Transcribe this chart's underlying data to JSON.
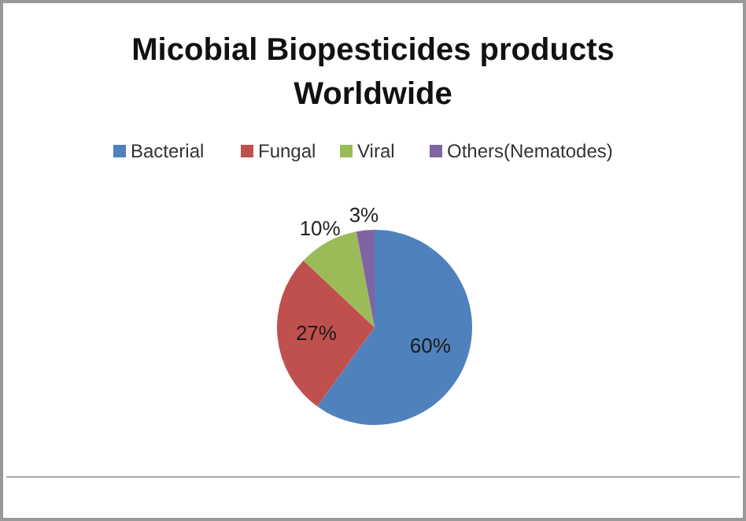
{
  "chart_data": {
    "type": "pie",
    "title": "Micobial Biopesticides products Worldwide",
    "categories": [
      "Bacterial",
      "Fungal",
      "Viral",
      "Others(Nematodes)"
    ],
    "values": [
      60,
      27,
      10,
      3
    ],
    "value_labels": [
      "60%",
      "27%",
      "10%",
      "3%"
    ],
    "colors": [
      "#4f81bd",
      "#c0504d",
      "#9bbb59",
      "#8064a2"
    ],
    "legend": "top"
  }
}
